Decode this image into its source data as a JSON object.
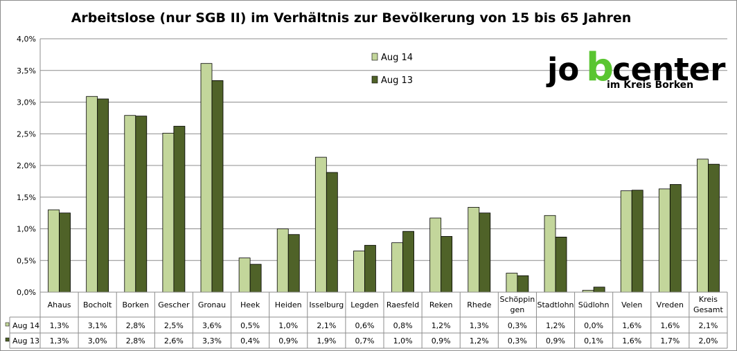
{
  "chart_data": {
    "type": "bar",
    "title": "Arbeitslose (nur SGB II) im Verhältnis zur Bevölkerung von 15 bis 65 Jahren",
    "categories": [
      [
        "Ahaus"
      ],
      [
        "Bocholt"
      ],
      [
        "Borken"
      ],
      [
        "Gescher"
      ],
      [
        "Gronau"
      ],
      [
        "Heek"
      ],
      [
        "Heiden"
      ],
      [
        "Isselburg"
      ],
      [
        "Legden"
      ],
      [
        "Raesfeld"
      ],
      [
        "Reken"
      ],
      [
        "Rhede"
      ],
      [
        "Schöppin",
        "gen"
      ],
      [
        "Stadtlohn"
      ],
      [
        "Südlohn"
      ],
      [
        "Velen"
      ],
      [
        "Vreden"
      ],
      [
        "Kreis",
        "Gesamt"
      ]
    ],
    "series": [
      {
        "name": "Aug 14",
        "color": "#c3d69b",
        "values": [
          1.3,
          3.09,
          2.79,
          2.51,
          3.61,
          0.54,
          1.0,
          2.13,
          0.65,
          0.78,
          1.17,
          1.34,
          0.3,
          1.21,
          0.03,
          1.6,
          1.63,
          2.1
        ],
        "labels": [
          "1,3%",
          "3,1%",
          "2,8%",
          "2,5%",
          "3,6%",
          "0,5%",
          "1,0%",
          "2,1%",
          "0,6%",
          "0,8%",
          "1,2%",
          "1,3%",
          "0,3%",
          "1,2%",
          "0,0%",
          "1,6%",
          "1,6%",
          "2,1%"
        ]
      },
      {
        "name": "Aug 13",
        "color": "#4f6228",
        "values": [
          1.25,
          3.05,
          2.78,
          2.62,
          3.34,
          0.44,
          0.91,
          1.89,
          0.74,
          0.96,
          0.88,
          1.25,
          0.26,
          0.87,
          0.08,
          1.61,
          1.7,
          2.02
        ],
        "labels": [
          "1,3%",
          "3,0%",
          "2,8%",
          "2,6%",
          "3,3%",
          "0,4%",
          "0,9%",
          "1,9%",
          "0,7%",
          "1,0%",
          "0,9%",
          "1,2%",
          "0,3%",
          "0,9%",
          "0,1%",
          "1,6%",
          "1,7%",
          "2,0%"
        ]
      }
    ],
    "ylim": [
      0,
      4
    ],
    "yticks": [
      "0,0%",
      "0,5%",
      "1,0%",
      "1,5%",
      "2,0%",
      "2,5%",
      "3,0%",
      "3,5%",
      "4,0%"
    ],
    "grid": true,
    "legend_position": "top-center",
    "data_table": true
  },
  "logo": {
    "text_main": "jobcenter",
    "text_sub": "im Kreis Borken",
    "accent": "#5ac531"
  }
}
